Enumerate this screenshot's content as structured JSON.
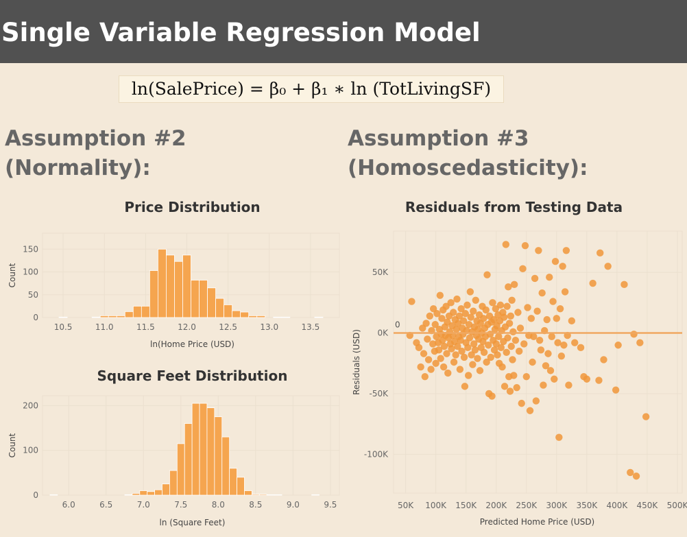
{
  "header": {
    "title": "Single Variable Regression Model"
  },
  "formula": {
    "text": "ln(SalePrice) = β₀ + β₁ ∗ ln (TotLivingSF)"
  },
  "sections": {
    "left": {
      "line1": "Assumption #2",
      "line2": "(Normality):"
    },
    "right": {
      "line1": "Assumption #3",
      "line2": "(Homoscedasticity):"
    }
  },
  "colors": {
    "bar": "#f5a54f",
    "bar_edge": "#ffffff",
    "point": "#f0963a",
    "zero_line": "#f0a860",
    "header_bg": "#515151",
    "page_bg": "#f4e9d9"
  },
  "chart_data": [
    {
      "type": "bar",
      "title": "Price Distribution",
      "xlabel": "ln(Home Price (USD)",
      "ylabel": "Count",
      "bin_width": 0.1,
      "x": [
        10.4,
        10.5,
        10.6,
        10.7,
        10.8,
        10.9,
        11.0,
        11.1,
        11.2,
        11.3,
        11.4,
        11.5,
        11.6,
        11.7,
        11.8,
        11.9,
        12.0,
        12.1,
        12.2,
        12.3,
        12.4,
        12.5,
        12.6,
        12.7,
        12.8,
        12.9,
        13.0,
        13.1,
        13.2,
        13.3,
        13.4,
        13.5,
        13.6
      ],
      "values": [
        0,
        1,
        0,
        0,
        0,
        1,
        4,
        4,
        4,
        13,
        25,
        25,
        103,
        150,
        137,
        123,
        137,
        82,
        82,
        65,
        42,
        28,
        15,
        12,
        4,
        4,
        0,
        1,
        1,
        0,
        0,
        0,
        1
      ],
      "xticks": [
        "10.5",
        "11.0",
        "11.5",
        "12.0",
        "12.5",
        "13.0",
        "13.5"
      ],
      "yticks": [
        "0",
        "50",
        "100",
        "150"
      ],
      "xlim": [
        10.25,
        13.85
      ],
      "ylim": [
        0,
        185
      ]
    },
    {
      "type": "bar",
      "title": "Square Feet Distribution",
      "xlabel": "ln (Square Feet)",
      "ylabel": "Count",
      "bin_width": 0.1,
      "x": [
        5.8,
        5.9,
        6.0,
        6.1,
        6.2,
        6.3,
        6.4,
        6.5,
        6.6,
        6.7,
        6.8,
        6.9,
        7.0,
        7.1,
        7.2,
        7.3,
        7.4,
        7.5,
        7.6,
        7.7,
        7.8,
        7.9,
        8.0,
        8.1,
        8.2,
        8.3,
        8.4,
        8.5,
        8.6,
        8.7,
        8.8,
        8.9,
        9.0,
        9.1,
        9.2,
        9.3,
        9.4
      ],
      "values": [
        1,
        0,
        0,
        0,
        0,
        0,
        0,
        0,
        0,
        0,
        1,
        4,
        10,
        8,
        12,
        25,
        55,
        115,
        160,
        205,
        205,
        195,
        175,
        130,
        60,
        40,
        10,
        2,
        2,
        1,
        1,
        0,
        0,
        0,
        0,
        1,
        0
      ],
      "xticks": [
        "6.0",
        "6.5",
        "7.0",
        "7.5",
        "8.0",
        "8.5",
        "9.0",
        "9.5"
      ],
      "yticks": [
        "0",
        "100",
        "200"
      ],
      "xlim": [
        5.65,
        9.62
      ],
      "ylim": [
        0,
        222
      ]
    },
    {
      "type": "scatter",
      "title": "Residuals from Testing Data",
      "xlabel": "Predicted Home Price (USD)",
      "ylabel": "Residuals (USD)",
      "reference_line": {
        "y": 0,
        "label": "0"
      },
      "xticks": [
        "50K",
        "100K",
        "150K",
        "200K",
        "250K",
        "300K",
        "350K",
        "400K",
        "450K",
        "500K"
      ],
      "yticks": [
        "50K",
        "0K",
        "-50K",
        "-100K"
      ],
      "xlim": [
        30000,
        508000
      ],
      "ylim": [
        -132000,
        84000
      ],
      "points": [
        [
          57000,
          -2000
        ],
        [
          60000,
          26000
        ],
        [
          68000,
          -8000
        ],
        [
          72000,
          -12000
        ],
        [
          75000,
          -28000
        ],
        [
          78000,
          4000
        ],
        [
          80000,
          -17000
        ],
        [
          82000,
          -36000
        ],
        [
          84000,
          8000
        ],
        [
          86000,
          -5000
        ],
        [
          88000,
          -22000
        ],
        [
          90000,
          14000
        ],
        [
          92000,
          -30000
        ],
        [
          93000,
          2000
        ],
        [
          95000,
          -9000
        ],
        [
          96000,
          20000
        ],
        [
          98000,
          -15000
        ],
        [
          99000,
          7000
        ],
        [
          100000,
          -25000
        ],
        [
          101000,
          -3000
        ],
        [
          102000,
          16000
        ],
        [
          104000,
          -8000
        ],
        [
          105000,
          -14000
        ],
        [
          106000,
          3000
        ],
        [
          107000,
          31000
        ],
        [
          108000,
          -21000
        ],
        [
          109000,
          -1000
        ],
        [
          110000,
          12000
        ],
        [
          111000,
          -6000
        ],
        [
          112000,
          19000
        ],
        [
          113000,
          -28000
        ],
        [
          114000,
          -11000
        ],
        [
          115000,
          5000
        ],
        [
          116000,
          -2000
        ],
        [
          117000,
          22000
        ],
        [
          118000,
          -17000
        ],
        [
          119000,
          9000
        ],
        [
          120000,
          -33000
        ],
        [
          121000,
          -4000
        ],
        [
          122000,
          14000
        ],
        [
          123000,
          1000
        ],
        [
          124000,
          -9000
        ],
        [
          125000,
          25000
        ],
        [
          126000,
          -13000
        ],
        [
          127000,
          6000
        ],
        [
          128000,
          -2000
        ],
        [
          129000,
          17000
        ],
        [
          130000,
          -24000
        ],
        [
          131000,
          -7000
        ],
        [
          132000,
          11000
        ],
        [
          133000,
          -18000
        ],
        [
          134000,
          3000
        ],
        [
          135000,
          28000
        ],
        [
          136000,
          -11000
        ],
        [
          137000,
          8000
        ],
        [
          138000,
          -3000
        ],
        [
          139000,
          14000
        ],
        [
          140000,
          -30000
        ],
        [
          141000,
          -6000
        ],
        [
          142000,
          20000
        ],
        [
          143000,
          -15000
        ],
        [
          144000,
          4000
        ],
        [
          145000,
          -1000
        ],
        [
          146000,
          10000
        ],
        [
          147000,
          -20000
        ],
        [
          148000,
          -44000
        ],
        [
          149000,
          16000
        ],
        [
          150000,
          -8000
        ],
        [
          151000,
          2000
        ],
        [
          152000,
          23000
        ],
        [
          153000,
          -12000
        ],
        [
          154000,
          -35000
        ],
        [
          155000,
          7000
        ],
        [
          156000,
          -4000
        ],
        [
          157000,
          34000
        ],
        [
          158000,
          13000
        ],
        [
          159000,
          -18000
        ],
        [
          160000,
          1000
        ],
        [
          161000,
          -26000
        ],
        [
          162000,
          18000
        ],
        [
          163000,
          -9000
        ],
        [
          164000,
          5000
        ],
        [
          165000,
          -14000
        ],
        [
          166000,
          27000
        ],
        [
          167000,
          -2000
        ],
        [
          168000,
          10000
        ],
        [
          169000,
          -21000
        ],
        [
          170000,
          3000
        ],
        [
          171000,
          -5000
        ],
        [
          172000,
          15000
        ],
        [
          173000,
          -31000
        ],
        [
          174000,
          8000
        ],
        [
          175000,
          -12000
        ],
        [
          176000,
          0
        ],
        [
          177000,
          22000
        ],
        [
          178000,
          -7000
        ],
        [
          179000,
          12000
        ],
        [
          180000,
          -16000
        ],
        [
          181000,
          4000
        ],
        [
          182000,
          -3000
        ],
        [
          183000,
          19000
        ],
        [
          184000,
          -24000
        ],
        [
          185000,
          48000
        ],
        [
          186000,
          7000
        ],
        [
          187000,
          -10000
        ],
        [
          188000,
          -50000
        ],
        [
          189000,
          14000
        ],
        [
          190000,
          -1000
        ],
        [
          191000,
          -20000
        ],
        [
          192000,
          9000
        ],
        [
          193000,
          -52000
        ],
        [
          194000,
          25000
        ],
        [
          195000,
          -6000
        ],
        [
          196000,
          11000
        ],
        [
          197000,
          -14000
        ],
        [
          198000,
          3000
        ],
        [
          199000,
          20000
        ],
        [
          200000,
          -9000
        ],
        [
          201000,
          6000
        ],
        [
          202000,
          -18000
        ],
        [
          203000,
          15000
        ],
        [
          204000,
          -3000
        ],
        [
          205000,
          -25000
        ],
        [
          206000,
          10000
        ],
        [
          207000,
          23000
        ],
        [
          208000,
          -12000
        ],
        [
          209000,
          2000
        ],
        [
          210000,
          -28000
        ],
        [
          211000,
          17000
        ],
        [
          212000,
          -7000
        ],
        [
          213000,
          13000
        ],
        [
          214000,
          -44000
        ],
        [
          215000,
          5000
        ],
        [
          216000,
          73000
        ],
        [
          217000,
          -16000
        ],
        [
          218000,
          22000
        ],
        [
          219000,
          -4000
        ],
        [
          220000,
          38000
        ],
        [
          221000,
          -36000
        ],
        [
          222000,
          8000
        ],
        [
          223000,
          -48000
        ],
        [
          224000,
          14000
        ],
        [
          225000,
          -11000
        ],
        [
          226000,
          27000
        ],
        [
          227000,
          -22000
        ],
        [
          228000,
          1000
        ],
        [
          229000,
          -35000
        ],
        [
          230000,
          40000
        ],
        [
          232000,
          -6000
        ],
        [
          234000,
          -45000
        ],
        [
          236000,
          17000
        ],
        [
          238000,
          -15000
        ],
        [
          240000,
          4000
        ],
        [
          242000,
          -58000
        ],
        [
          244000,
          53000
        ],
        [
          246000,
          -9000
        ],
        [
          248000,
          72000
        ],
        [
          250000,
          -36000
        ],
        [
          252000,
          21000
        ],
        [
          254000,
          -2000
        ],
        [
          256000,
          -64000
        ],
        [
          258000,
          12000
        ],
        [
          260000,
          -24000
        ],
        [
          262000,
          -3000
        ],
        [
          264000,
          45000
        ],
        [
          266000,
          -56000
        ],
        [
          268000,
          18000
        ],
        [
          270000,
          68000
        ],
        [
          272000,
          -6000
        ],
        [
          274000,
          -14000
        ],
        [
          276000,
          33000
        ],
        [
          278000,
          -43000
        ],
        [
          280000,
          2000
        ],
        [
          282000,
          -27000
        ],
        [
          284000,
          11000
        ],
        [
          286000,
          -17000
        ],
        [
          288000,
          46000
        ],
        [
          290000,
          -31000
        ],
        [
          292000,
          -3000
        ],
        [
          294000,
          26000
        ],
        [
          296000,
          -38000
        ],
        [
          298000,
          59000
        ],
        [
          300000,
          12000
        ],
        [
          302000,
          -8000
        ],
        [
          304000,
          -86000
        ],
        [
          306000,
          20000
        ],
        [
          308000,
          -19000
        ],
        [
          310000,
          55000
        ],
        [
          312000,
          -10000
        ],
        [
          314000,
          34000
        ],
        [
          316000,
          68000
        ],
        [
          318000,
          -2000
        ],
        [
          320000,
          -43000
        ],
        [
          325000,
          10000
        ],
        [
          330000,
          -8000
        ],
        [
          340000,
          -12000
        ],
        [
          345000,
          -36000
        ],
        [
          350000,
          -38000
        ],
        [
          360000,
          41000
        ],
        [
          370000,
          -39000
        ],
        [
          372000,
          66000
        ],
        [
          378000,
          -22000
        ],
        [
          385000,
          55000
        ],
        [
          398000,
          -47000
        ],
        [
          402000,
          -10000
        ],
        [
          412000,
          40000
        ],
        [
          422000,
          -115000
        ],
        [
          428000,
          -1000
        ],
        [
          432000,
          -118000
        ],
        [
          438000,
          -8000
        ],
        [
          448000,
          -69000
        ]
      ]
    }
  ]
}
